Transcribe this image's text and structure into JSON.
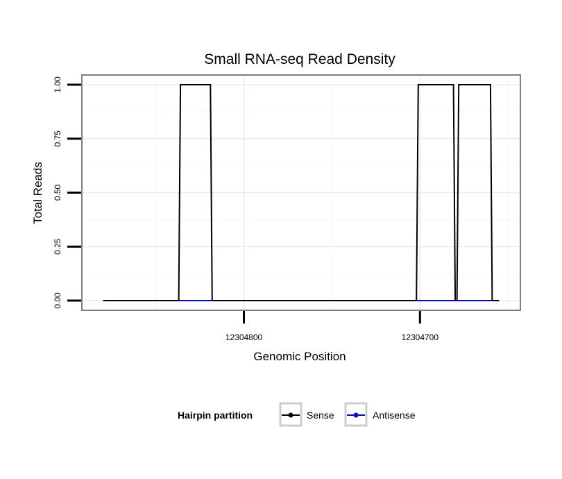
{
  "chart_data": {
    "type": "line",
    "title": "Small RNA-seq Read Density",
    "xlabel": "Genomic Position",
    "ylabel": "Total Reads",
    "x_reversed": true,
    "xlim": [
      12304892,
      12304643
    ],
    "ylim": [
      -0.045,
      1.045
    ],
    "x_ticks": [
      12304800,
      12304700
    ],
    "x_tick_labels": [
      "12304800",
      "12304700"
    ],
    "y_ticks": [
      0,
      0.25,
      0.5,
      0.75,
      1.0
    ],
    "y_tick_labels": [
      "0.00",
      "0.25",
      "0.50",
      "0.75",
      "1.00"
    ],
    "grid": true,
    "legend": {
      "title": "Hairpin partition",
      "position": "bottom",
      "entries": [
        {
          "label": "Sense",
          "color": "#000000"
        },
        {
          "label": "Antisense",
          "color": "#0000ff"
        }
      ]
    },
    "series": [
      {
        "name": "Sense",
        "color": "#000000",
        "x": [
          12304880,
          12304837,
          12304836,
          12304819,
          12304818,
          12304702,
          12304701,
          12304681,
          12304680,
          12304679,
          12304678,
          12304660,
          12304659,
          12304655
        ],
        "y": [
          0,
          0,
          1,
          1,
          0,
          0,
          1,
          1,
          0,
          0,
          1,
          1,
          0,
          0
        ]
      },
      {
        "name": "Antisense",
        "color": "#0000ff",
        "x": [
          12304837,
          12304818,
          12304702,
          12304680,
          12304679,
          12304659
        ],
        "y": [
          0,
          0,
          0,
          0,
          0,
          0
        ],
        "segments": [
          [
            0,
            1
          ],
          [
            2,
            3
          ],
          [
            4,
            5
          ]
        ]
      }
    ]
  }
}
